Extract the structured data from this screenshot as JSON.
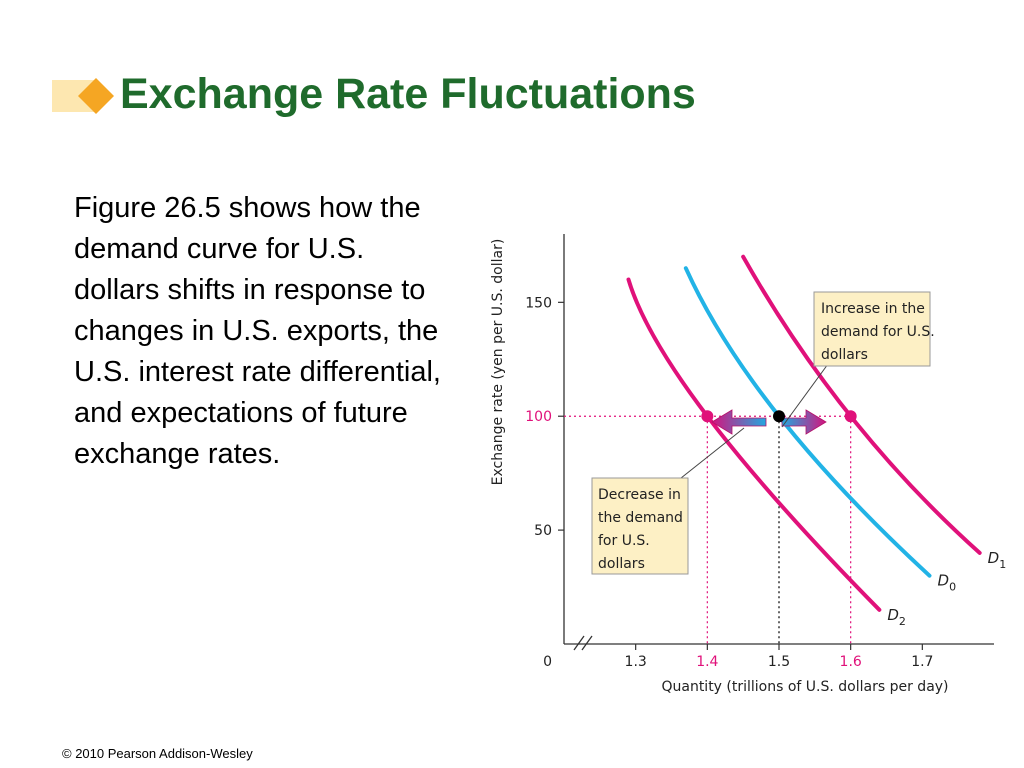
{
  "slide": {
    "title": "Exchange Rate Fluctuations",
    "body": "Figure 26.5 shows how the demand curve for U.S. dollars shifts in response to changes in U.S. exports, the U.S. interest rate differential, and expectations of future exchange rates.",
    "footer": "© 2010 Pearson Addison-Wesley",
    "colors": {
      "title": "#1f6b2c",
      "accent": "#f5a623",
      "d0_curve": "#22b3e6",
      "shifted_curves": "#e0117a",
      "callout_fill": "#fdf0c5"
    }
  },
  "chart_data": {
    "type": "line",
    "xlabel": "Quantity (trillions of U.S. dollars per day)",
    "ylabel": "Exchange rate (yen per U.S. dollar)",
    "x_ticks": [
      "1.3",
      "1.4",
      "1.5",
      "1.6",
      "1.7"
    ],
    "x_tick_values": [
      1.3,
      1.4,
      1.5,
      1.6,
      1.7
    ],
    "x_highlight_ticks": [
      "1.4",
      "1.6"
    ],
    "y_ticks": [
      "50",
      "100",
      "150"
    ],
    "y_tick_values": [
      50,
      100,
      150
    ],
    "y_highlight_ticks": [
      "100"
    ],
    "origin_label": "0",
    "xlim": [
      1.2,
      1.8
    ],
    "ylim": [
      0,
      180
    ],
    "axis_break": "x",
    "series": [
      {
        "curve_label": "D",
        "subscript": "1",
        "color": "#e0117a",
        "points": [
          [
            1.45,
            170
          ],
          [
            1.6,
            100
          ],
          [
            1.78,
            40
          ]
        ]
      },
      {
        "curve_label": "D",
        "subscript": "0",
        "color": "#22b3e6",
        "points": [
          [
            1.37,
            165
          ],
          [
            1.5,
            100
          ],
          [
            1.71,
            30
          ]
        ]
      },
      {
        "curve_label": "D",
        "subscript": "2",
        "color": "#e0117a",
        "points": [
          [
            1.29,
            160
          ],
          [
            1.4,
            100
          ],
          [
            1.64,
            15
          ]
        ]
      }
    ],
    "points": [
      {
        "x": 1.4,
        "y": 100,
        "color": "#e0117a"
      },
      {
        "x": 1.5,
        "y": 100,
        "color": "#000000"
      },
      {
        "x": 1.6,
        "y": 100,
        "color": "#e0117a"
      }
    ],
    "annotations": {
      "increase": "Increase in the demand for U.S. dollars",
      "decrease": "Decrease in the demand for U.S. dollars"
    }
  }
}
